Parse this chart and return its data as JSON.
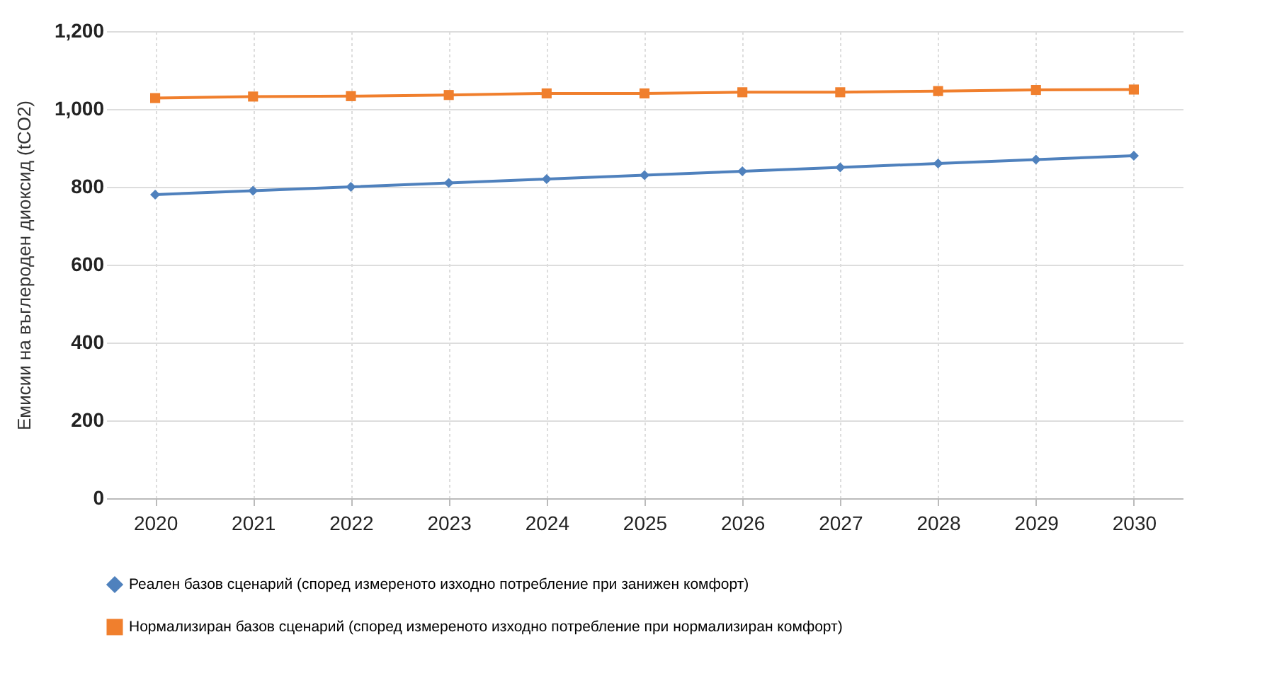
{
  "chart_data": {
    "type": "line",
    "ylabel": "Емисии на въглероден диоксид (tCO2)",
    "categories": [
      "2020",
      "2021",
      "2022",
      "2023",
      "2024",
      "2025",
      "2026",
      "2027",
      "2028",
      "2029",
      "2030"
    ],
    "series": [
      {
        "name": "Реален базов сценарий (според измереното изходно потребление при занижен комфорт)",
        "color": "#4f81bd",
        "marker": "diamond",
        "values": [
          780,
          790,
          800,
          810,
          820,
          830,
          840,
          850,
          860,
          870,
          880
        ]
      },
      {
        "name": "Нормализиран базов сценарий (според измереното изходно потребление при нормализиран комфорт)",
        "color": "#f07f2d",
        "marker": "square",
        "values": [
          1028,
          1032,
          1033,
          1036,
          1040,
          1040,
          1043,
          1043,
          1046,
          1049,
          1050
        ]
      }
    ],
    "ylim": [
      0,
      1200
    ],
    "yticks": [
      0,
      200,
      400,
      600,
      800,
      {
        "value": 1000,
        "label": "1,000"
      },
      {
        "value": 1200,
        "label": "1,200"
      }
    ],
    "grid": true,
    "legend": "bottom",
    "line_style": "solid"
  }
}
